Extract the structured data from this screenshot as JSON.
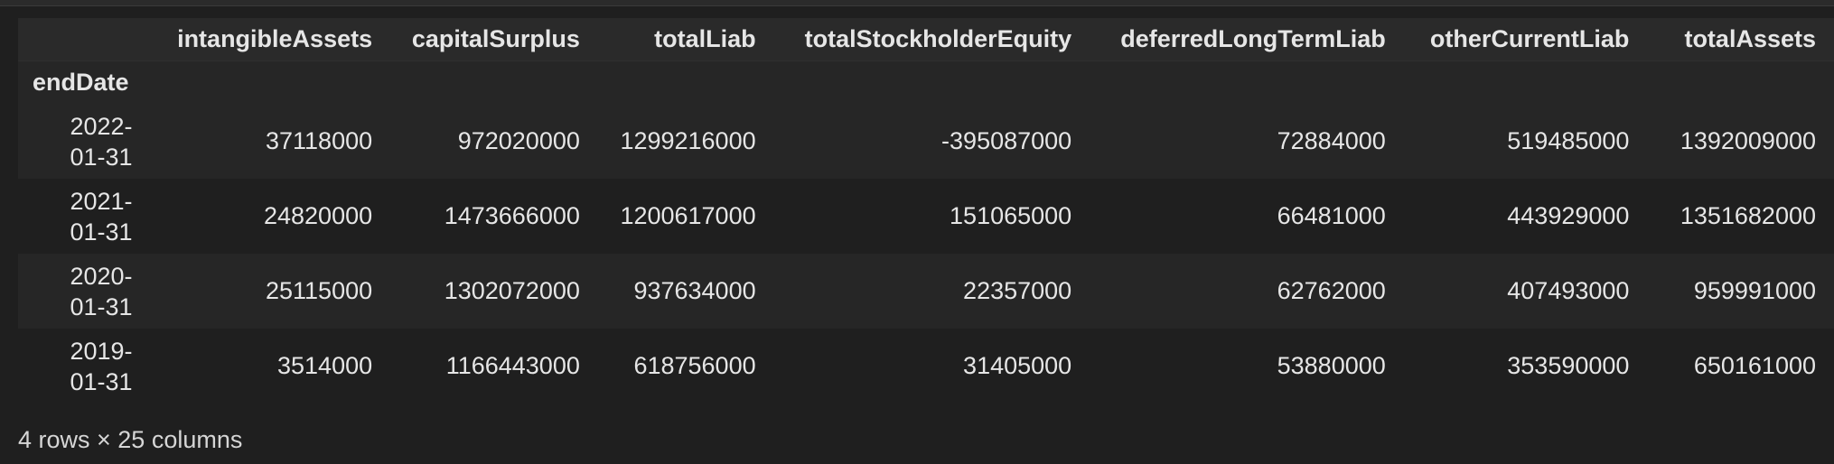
{
  "table": {
    "index_name": "endDate",
    "columns": [
      "intangibleAssets",
      "capitalSurplus",
      "totalLiab",
      "totalStockholderEquity",
      "deferredLongTermLiab",
      "otherCurrentLiab",
      "totalAssets"
    ],
    "rows": [
      {
        "date_a": "2022-",
        "date_b": "01-31",
        "cells": [
          "37118000",
          "972020000",
          "1299216000",
          "-395087000",
          "72884000",
          "519485000",
          "1392009000"
        ]
      },
      {
        "date_a": "2021-",
        "date_b": "01-31",
        "cells": [
          "24820000",
          "1473666000",
          "1200617000",
          "151065000",
          "66481000",
          "443929000",
          "1351682000"
        ]
      },
      {
        "date_a": "2020-",
        "date_b": "01-31",
        "cells": [
          "25115000",
          "1302072000",
          "937634000",
          "22357000",
          "62762000",
          "407493000",
          "959991000"
        ]
      },
      {
        "date_a": "2019-",
        "date_b": "01-31",
        "cells": [
          "3514000",
          "1166443000",
          "618756000",
          "31405000",
          "53880000",
          "353590000",
          "650161000"
        ]
      }
    ]
  },
  "footer": {
    "summary": "4 rows × 25 columns"
  }
}
